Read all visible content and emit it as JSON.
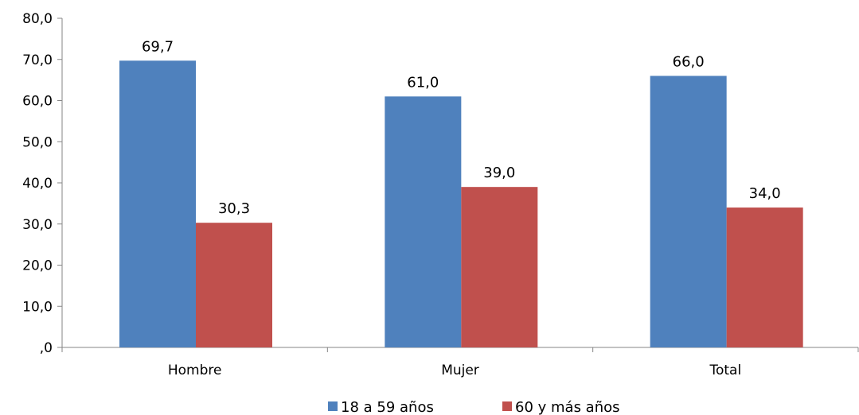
{
  "chart_data": {
    "type": "bar",
    "categories": [
      "Hombre",
      "Mujer",
      "Total"
    ],
    "series": [
      {
        "name": "18 a 59 años",
        "values": [
          69.7,
          61.0,
          66.0
        ],
        "value_labels": [
          "69,7",
          "61,0",
          "66,0"
        ],
        "color": "#4F81BD"
      },
      {
        "name": "60 y más años",
        "values": [
          30.3,
          39.0,
          34.0
        ],
        "value_labels": [
          "30,3",
          "39,0",
          "34,0"
        ],
        "color": "#C0504D"
      }
    ],
    "ylim": [
      0,
      80
    ],
    "yticks": [
      0,
      10,
      20,
      30,
      40,
      50,
      60,
      70,
      80
    ],
    "ytick_labels": [
      ",0",
      "10,0",
      "20,0",
      "30,0",
      "40,0",
      "50,0",
      "60,0",
      "70,0",
      "80,0"
    ],
    "title": "",
    "xlabel": "",
    "ylabel": "",
    "grid": false,
    "legend_position": "bottom"
  }
}
